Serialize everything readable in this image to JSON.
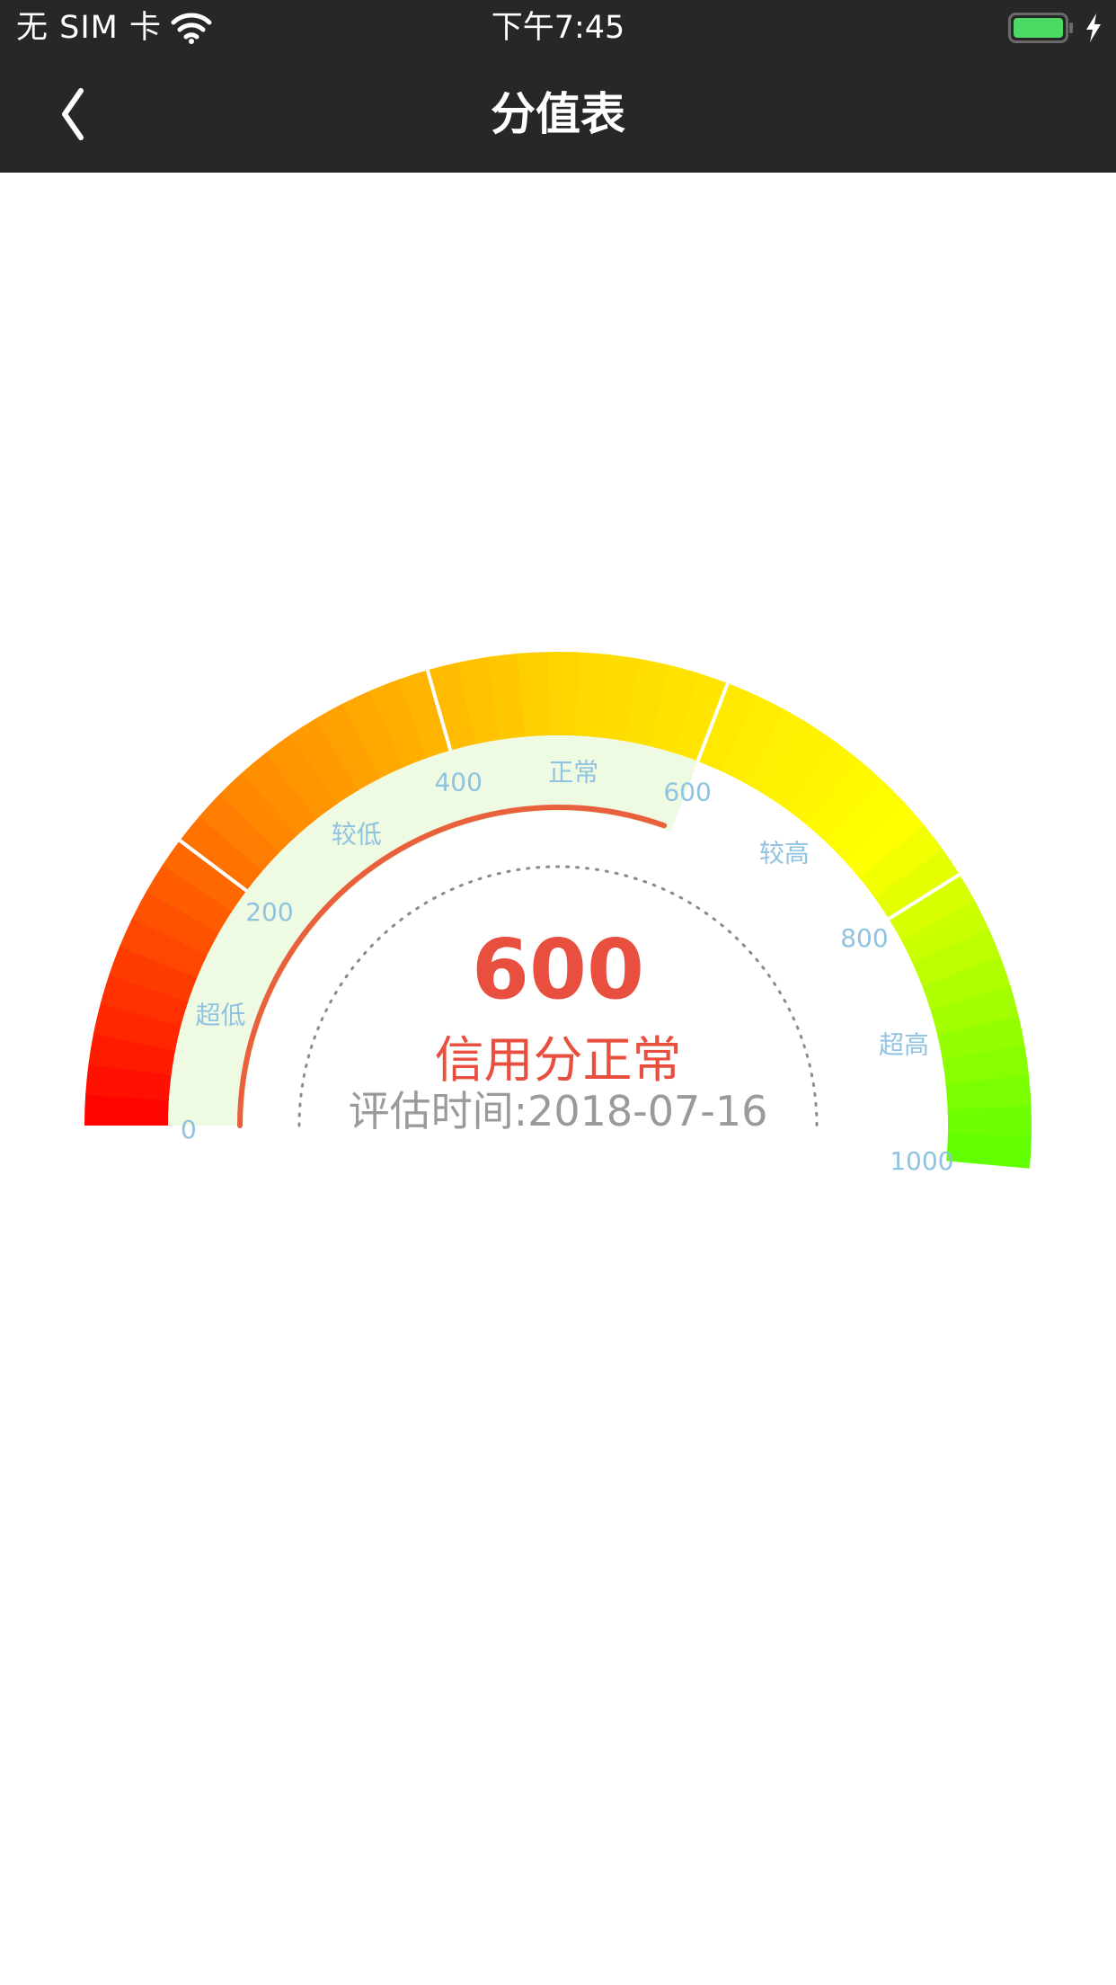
{
  "status_bar": {
    "carrier": "无 SIM 卡",
    "time": "下午7:45",
    "battery_color": "#4cd964"
  },
  "nav": {
    "title": "分值表",
    "back_icon": "chevron-left-icon"
  },
  "gauge": {
    "min": 0,
    "max": 1000,
    "value": 600,
    "tick_labels": [
      "0",
      "200",
      "400",
      "600",
      "800",
      "1000"
    ],
    "band_labels": [
      "超低",
      "较低",
      "正常",
      "较高",
      "超高"
    ],
    "start_color": "#ff0000",
    "end_color": "#5aff00",
    "progress_color": "#e8603c",
    "inner_band_color": "#eefae2",
    "label_color": "#8fc3e0"
  },
  "result": {
    "score": "600",
    "level_text": "信用分正常",
    "eval_date": "评估时间:2018-07-16",
    "score_color": "#e84f3e"
  }
}
